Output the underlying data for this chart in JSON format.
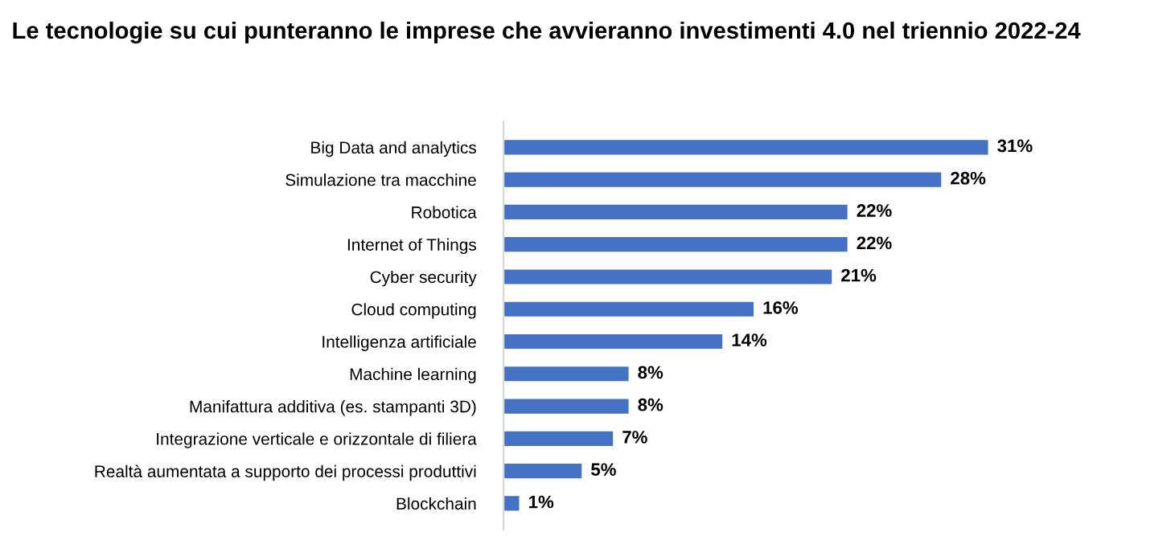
{
  "chart_data": {
    "type": "bar",
    "orientation": "horizontal",
    "title": "Le tecnologie su cui punteranno le imprese che avvieranno investimenti 4.0 nel triennio 2022-24",
    "categories": [
      "Big Data and analytics",
      "Simulazione tra macchine",
      "Robotica",
      "Internet of Things",
      "Cyber security",
      "Cloud computing",
      "Intelligenza artificiale",
      "Machine learning",
      "Manifattura additiva (es. stampanti 3D)",
      "Integrazione verticale e orizzontale di filiera",
      "Realtà aumentata a supporto dei processi produttivi",
      "Blockchain"
    ],
    "values": [
      31,
      28,
      22,
      22,
      21,
      16,
      14,
      8,
      8,
      7,
      5,
      1
    ],
    "value_labels": [
      "31%",
      "28%",
      "22%",
      "22%",
      "21%",
      "16%",
      "14%",
      "8%",
      "8%",
      "7%",
      "5%",
      "1%"
    ],
    "color": "#4472c4",
    "grid": false,
    "legend": false
  }
}
